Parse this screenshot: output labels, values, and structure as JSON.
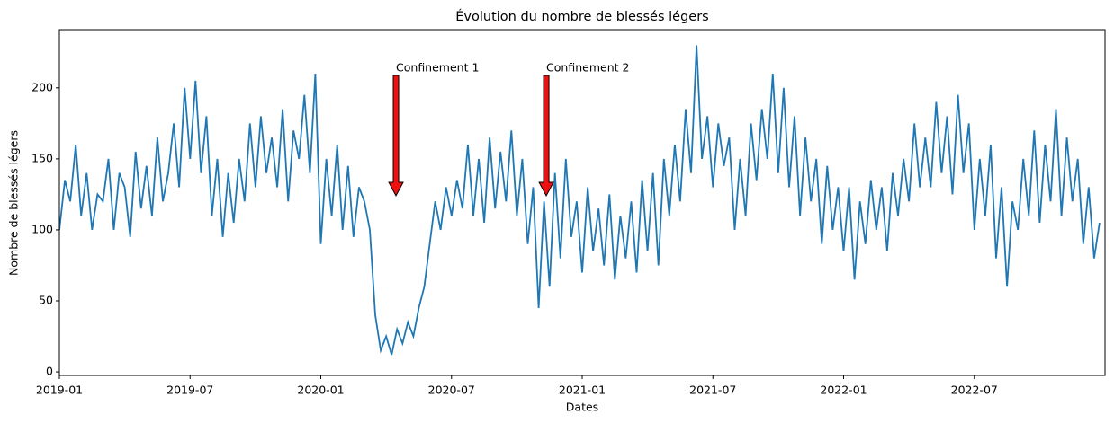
{
  "chart_data": {
    "type": "line",
    "title": "Évolution du nombre de blessés légers",
    "x_label": "Dates",
    "y_label": "Nombre de blessés légers",
    "xlim": [
      0,
      48
    ],
    "ylim": [
      -2.5,
      241
    ],
    "xticks": [
      {
        "value": 0,
        "label": "2019-01"
      },
      {
        "value": 6,
        "label": "2019-07"
      },
      {
        "value": 12,
        "label": "2020-01"
      },
      {
        "value": 18,
        "label": "2020-07"
      },
      {
        "value": 24,
        "label": "2021-01"
      },
      {
        "value": 30,
        "label": "2021-07"
      },
      {
        "value": 36,
        "label": "2022-01"
      },
      {
        "value": 42,
        "label": "2022-07"
      }
    ],
    "yticks": [
      0,
      50,
      100,
      150,
      200
    ],
    "grid": false,
    "x": [
      0,
      0.25,
      0.5,
      0.75,
      1,
      1.25,
      1.5,
      1.75,
      2,
      2.25,
      2.5,
      2.75,
      3,
      3.25,
      3.5,
      3.75,
      4,
      4.25,
      4.5,
      4.75,
      5,
      5.25,
      5.5,
      5.75,
      6,
      6.25,
      6.5,
      6.75,
      7,
      7.25,
      7.5,
      7.75,
      8,
      8.25,
      8.5,
      8.75,
      9,
      9.25,
      9.5,
      9.75,
      10,
      10.25,
      10.5,
      10.75,
      11,
      11.25,
      11.5,
      11.75,
      12,
      12.25,
      12.5,
      12.75,
      13,
      13.25,
      13.5,
      13.75,
      14,
      14.25,
      14.5,
      14.75,
      15,
      15.25,
      15.5,
      15.75,
      16,
      16.25,
      16.5,
      16.75,
      17,
      17.25,
      17.5,
      17.75,
      18,
      18.25,
      18.5,
      18.75,
      19,
      19.25,
      19.5,
      19.75,
      20,
      20.25,
      20.5,
      20.75,
      21,
      21.25,
      21.5,
      21.75,
      22,
      22.25,
      22.5,
      22.75,
      23,
      23.25,
      23.5,
      23.75,
      24,
      24.25,
      24.5,
      24.75,
      25,
      25.25,
      25.5,
      25.75,
      26,
      26.25,
      26.5,
      26.75,
      27,
      27.25,
      27.5,
      27.75,
      28,
      28.25,
      28.5,
      28.75,
      29,
      29.25,
      29.5,
      29.75,
      30,
      30.25,
      30.5,
      30.75,
      31,
      31.25,
      31.5,
      31.75,
      32,
      32.25,
      32.5,
      32.75,
      33,
      33.25,
      33.5,
      33.75,
      34,
      34.25,
      34.5,
      34.75,
      35,
      35.25,
      35.5,
      35.75,
      36,
      36.25,
      36.5,
      36.75,
      37,
      37.25,
      37.5,
      37.75,
      38,
      38.25,
      38.5,
      38.75,
      39,
      39.25,
      39.5,
      39.75,
      40,
      40.25,
      40.5,
      40.75,
      41,
      41.25,
      41.5,
      41.75,
      42,
      42.25,
      42.5,
      42.75,
      43,
      43.25,
      43.5,
      43.75,
      44,
      44.25,
      44.5,
      44.75,
      45,
      45.25,
      45.5,
      45.75,
      46,
      46.25,
      46.5,
      46.75,
      47,
      47.25,
      47.5,
      47.75
    ],
    "series": [
      {
        "color": "#1f77b4",
        "values": [
          100,
          135,
          120,
          160,
          110,
          140,
          100,
          125,
          120,
          150,
          100,
          140,
          130,
          95,
          155,
          115,
          145,
          110,
          165,
          120,
          140,
          175,
          130,
          200,
          150,
          205,
          140,
          180,
          110,
          150,
          95,
          140,
          105,
          150,
          120,
          175,
          130,
          180,
          140,
          165,
          130,
          185,
          120,
          170,
          150,
          195,
          140,
          210,
          90,
          150,
          110,
          160,
          100,
          145,
          95,
          130,
          120,
          100,
          40,
          15,
          25,
          12,
          30,
          20,
          35,
          25,
          45,
          60,
          90,
          120,
          100,
          130,
          110,
          135,
          115,
          160,
          110,
          150,
          105,
          165,
          115,
          155,
          120,
          170,
          110,
          150,
          90,
          130,
          45,
          120,
          60,
          140,
          80,
          150,
          95,
          120,
          70,
          130,
          85,
          115,
          75,
          125,
          65,
          110,
          80,
          120,
          70,
          135,
          85,
          140,
          75,
          150,
          110,
          160,
          120,
          185,
          140,
          230,
          150,
          180,
          130,
          175,
          145,
          165,
          100,
          150,
          110,
          175,
          135,
          185,
          150,
          210,
          140,
          200,
          130,
          180,
          110,
          165,
          120,
          150,
          90,
          145,
          100,
          130,
          85,
          130,
          65,
          120,
          90,
          135,
          100,
          130,
          85,
          140,
          110,
          150,
          120,
          175,
          130,
          165,
          130,
          190,
          140,
          180,
          125,
          195,
          140,
          175,
          100,
          150,
          110,
          160,
          80,
          130,
          60,
          120,
          100,
          150,
          110,
          170,
          105,
          160,
          120,
          185,
          110,
          165,
          120,
          150,
          90,
          130,
          80,
          105
        ]
      }
    ],
    "annotations": [
      {
        "text": "Confinement 1",
        "x": 15.45,
        "y": 124,
        "text_y": 210
      },
      {
        "text": "Confinement 2",
        "x": 22.35,
        "y": 124,
        "text_y": 210
      }
    ]
  }
}
